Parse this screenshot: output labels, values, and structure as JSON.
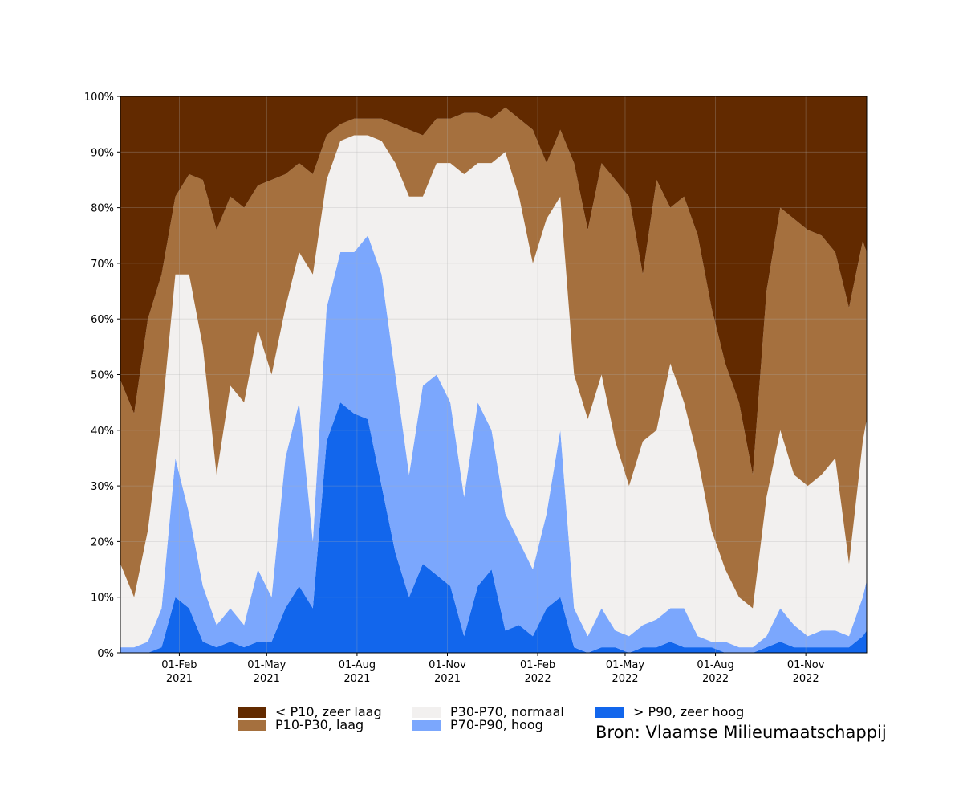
{
  "chart_data": {
    "type": "stacked-area",
    "annotation": "Bron: Vlaamse Milieumaatschappij",
    "x": [
      "2020-12-03",
      "2020-12-17",
      "2020-12-31",
      "2021-01-14",
      "2021-01-28",
      "2021-02-11",
      "2021-02-25",
      "2021-03-11",
      "2021-03-25",
      "2021-04-08",
      "2021-04-22",
      "2021-05-06",
      "2021-05-20",
      "2021-06-03",
      "2021-06-17",
      "2021-07-01",
      "2021-07-15",
      "2021-07-29",
      "2021-08-12",
      "2021-08-26",
      "2021-09-09",
      "2021-09-23",
      "2021-10-07",
      "2021-10-21",
      "2021-11-04",
      "2021-11-18",
      "2021-12-02",
      "2021-12-16",
      "2021-12-30",
      "2022-01-13",
      "2022-01-27",
      "2022-02-10",
      "2022-02-24",
      "2022-03-10",
      "2022-03-24",
      "2022-04-07",
      "2022-04-21",
      "2022-05-05",
      "2022-05-19",
      "2022-06-02",
      "2022-06-16",
      "2022-06-30",
      "2022-07-14",
      "2022-07-28",
      "2022-08-11",
      "2022-08-25",
      "2022-09-08",
      "2022-09-22",
      "2022-10-06",
      "2022-10-20",
      "2022-11-03",
      "2022-11-17",
      "2022-12-01",
      "2022-12-15",
      "2022-12-29",
      "2023-01-02"
    ],
    "series": [
      {
        "name": "< P10, zeer laag",
        "color": "#622a00",
        "values": [
          51,
          57,
          40,
          32,
          18,
          14,
          15,
          24,
          18,
          20,
          16,
          15,
          14,
          12,
          14,
          7,
          5,
          4,
          4,
          4,
          5,
          6,
          7,
          4,
          4,
          3,
          3,
          4,
          2,
          4,
          6,
          12,
          6,
          12,
          24,
          12,
          15,
          18,
          32,
          15,
          20,
          18,
          25,
          38,
          48,
          55,
          68,
          35,
          20,
          22,
          24,
          25,
          28,
          38,
          26,
          28
        ]
      },
      {
        "name": "P10-P30, laag",
        "color": "#a5703e",
        "values": [
          33,
          33,
          38,
          26,
          14,
          18,
          30,
          44,
          34,
          35,
          26,
          35,
          24,
          16,
          18,
          8,
          3,
          3,
          3,
          4,
          7,
          12,
          11,
          8,
          8,
          11,
          9,
          8,
          8,
          14,
          24,
          10,
          12,
          38,
          34,
          38,
          47,
          52,
          30,
          45,
          28,
          37,
          40,
          40,
          37,
          35,
          24,
          37,
          40,
          46,
          46,
          43,
          37,
          46,
          36,
          30
        ]
      },
      {
        "name": "P30-P70, normaal",
        "color": "#f2f0ef",
        "values": [
          15,
          9,
          20,
          34,
          33,
          43,
          43,
          27,
          40,
          40,
          43,
          40,
          27,
          27,
          48,
          23,
          20,
          21,
          18,
          24,
          38,
          50,
          34,
          38,
          43,
          58,
          43,
          48,
          65,
          62,
          55,
          53,
          42,
          42,
          39,
          42,
          34,
          27,
          33,
          34,
          44,
          37,
          32,
          20,
          13,
          9,
          7,
          25,
          32,
          27,
          27,
          28,
          31,
          13,
          28,
          29
        ]
      },
      {
        "name": "P70-P90, hoog",
        "color": "#7ba7fd",
        "values": [
          1,
          1,
          2,
          7,
          25,
          17,
          10,
          4,
          6,
          4,
          13,
          8,
          27,
          33,
          12,
          24,
          27,
          29,
          33,
          38,
          32,
          22,
          32,
          36,
          33,
          25,
          33,
          25,
          21,
          15,
          12,
          17,
          30,
          7,
          3,
          7,
          3,
          3,
          4,
          5,
          6,
          7,
          2,
          1,
          2,
          1,
          1,
          2,
          6,
          4,
          2,
          3,
          3,
          2,
          7,
          9
        ]
      },
      {
        "name": "> P90, zeer hoog",
        "color": "#1266ec",
        "values": [
          0,
          0,
          0,
          1,
          10,
          8,
          2,
          1,
          2,
          1,
          2,
          2,
          8,
          12,
          8,
          38,
          45,
          43,
          42,
          30,
          18,
          10,
          16,
          14,
          12,
          3,
          12,
          15,
          4,
          5,
          3,
          8,
          10,
          1,
          0,
          1,
          1,
          0,
          1,
          1,
          2,
          1,
          1,
          1,
          0,
          0,
          0,
          1,
          2,
          1,
          1,
          1,
          1,
          1,
          3,
          4
        ]
      }
    ],
    "xlim": [
      "2020-12-03",
      "2023-01-02"
    ],
    "xticks": [
      {
        "value": "2021-02-01",
        "label": "01-Feb\n2021"
      },
      {
        "value": "2021-05-01",
        "label": "01-May\n2021"
      },
      {
        "value": "2021-08-01",
        "label": "01-Aug\n2021"
      },
      {
        "value": "2021-11-01",
        "label": "01-Nov\n2021"
      },
      {
        "value": "2022-02-01",
        "label": "01-Feb\n2022"
      },
      {
        "value": "2022-05-01",
        "label": "01-May\n2022"
      },
      {
        "value": "2022-08-01",
        "label": "01-Aug\n2022"
      },
      {
        "value": "2022-11-01",
        "label": "01-Nov\n2022"
      }
    ],
    "ylim": [
      0,
      100
    ],
    "yticks": [
      {
        "value": 0,
        "label": "0%"
      },
      {
        "value": 10,
        "label": "10%"
      },
      {
        "value": 20,
        "label": "20%"
      },
      {
        "value": 30,
        "label": "30%"
      },
      {
        "value": 40,
        "label": "40%"
      },
      {
        "value": 50,
        "label": "50%"
      },
      {
        "value": 60,
        "label": "60%"
      },
      {
        "value": 70,
        "label": "70%"
      },
      {
        "value": 80,
        "label": "80%"
      },
      {
        "value": 90,
        "label": "90%"
      },
      {
        "value": 100,
        "label": "100%"
      }
    ],
    "grid": true,
    "legend": "bottom"
  }
}
